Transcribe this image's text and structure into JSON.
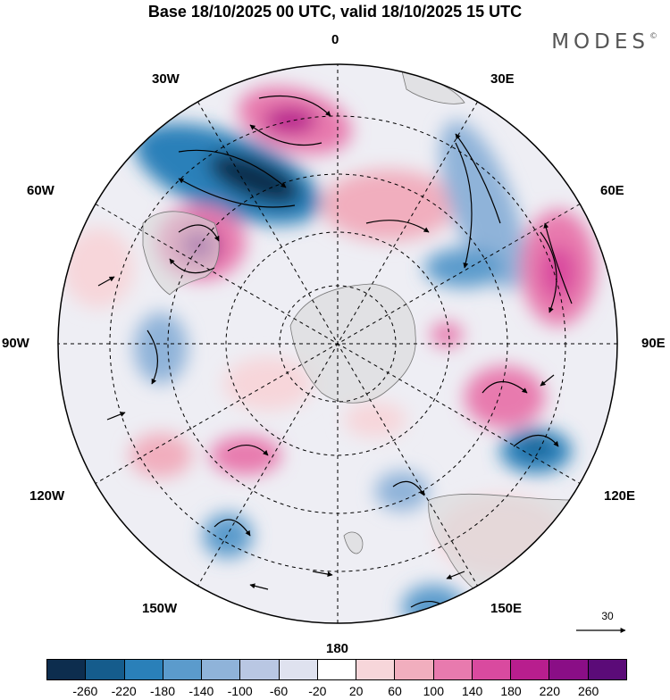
{
  "title": "Base 18/10/2025 00 UTC, valid 18/10/2025 15 UTC",
  "brand": "MODES",
  "brand_mark": "©",
  "longitudes": [
    "0",
    "30E",
    "60E",
    "90E",
    "120E",
    "150E",
    "180",
    "150W",
    "120W",
    "90W",
    "60W",
    "30W"
  ],
  "vector_reference": "30",
  "colorbar": {
    "ticks": [
      "-260",
      "-220",
      "-180",
      "-140",
      "-100",
      "-60",
      "-20",
      "20",
      "60",
      "100",
      "140",
      "180",
      "220",
      "260"
    ],
    "colors": [
      "#0d2d4e",
      "#155c8c",
      "#2a80b9",
      "#5b9bcc",
      "#8fb3d9",
      "#b9c7e3",
      "#dfe2ef",
      "#ffffff",
      "#f7d6da",
      "#f1aebe",
      "#e87aae",
      "#d94a9f",
      "#b81e8e",
      "#8a0e86",
      "#5b0b78"
    ]
  }
}
